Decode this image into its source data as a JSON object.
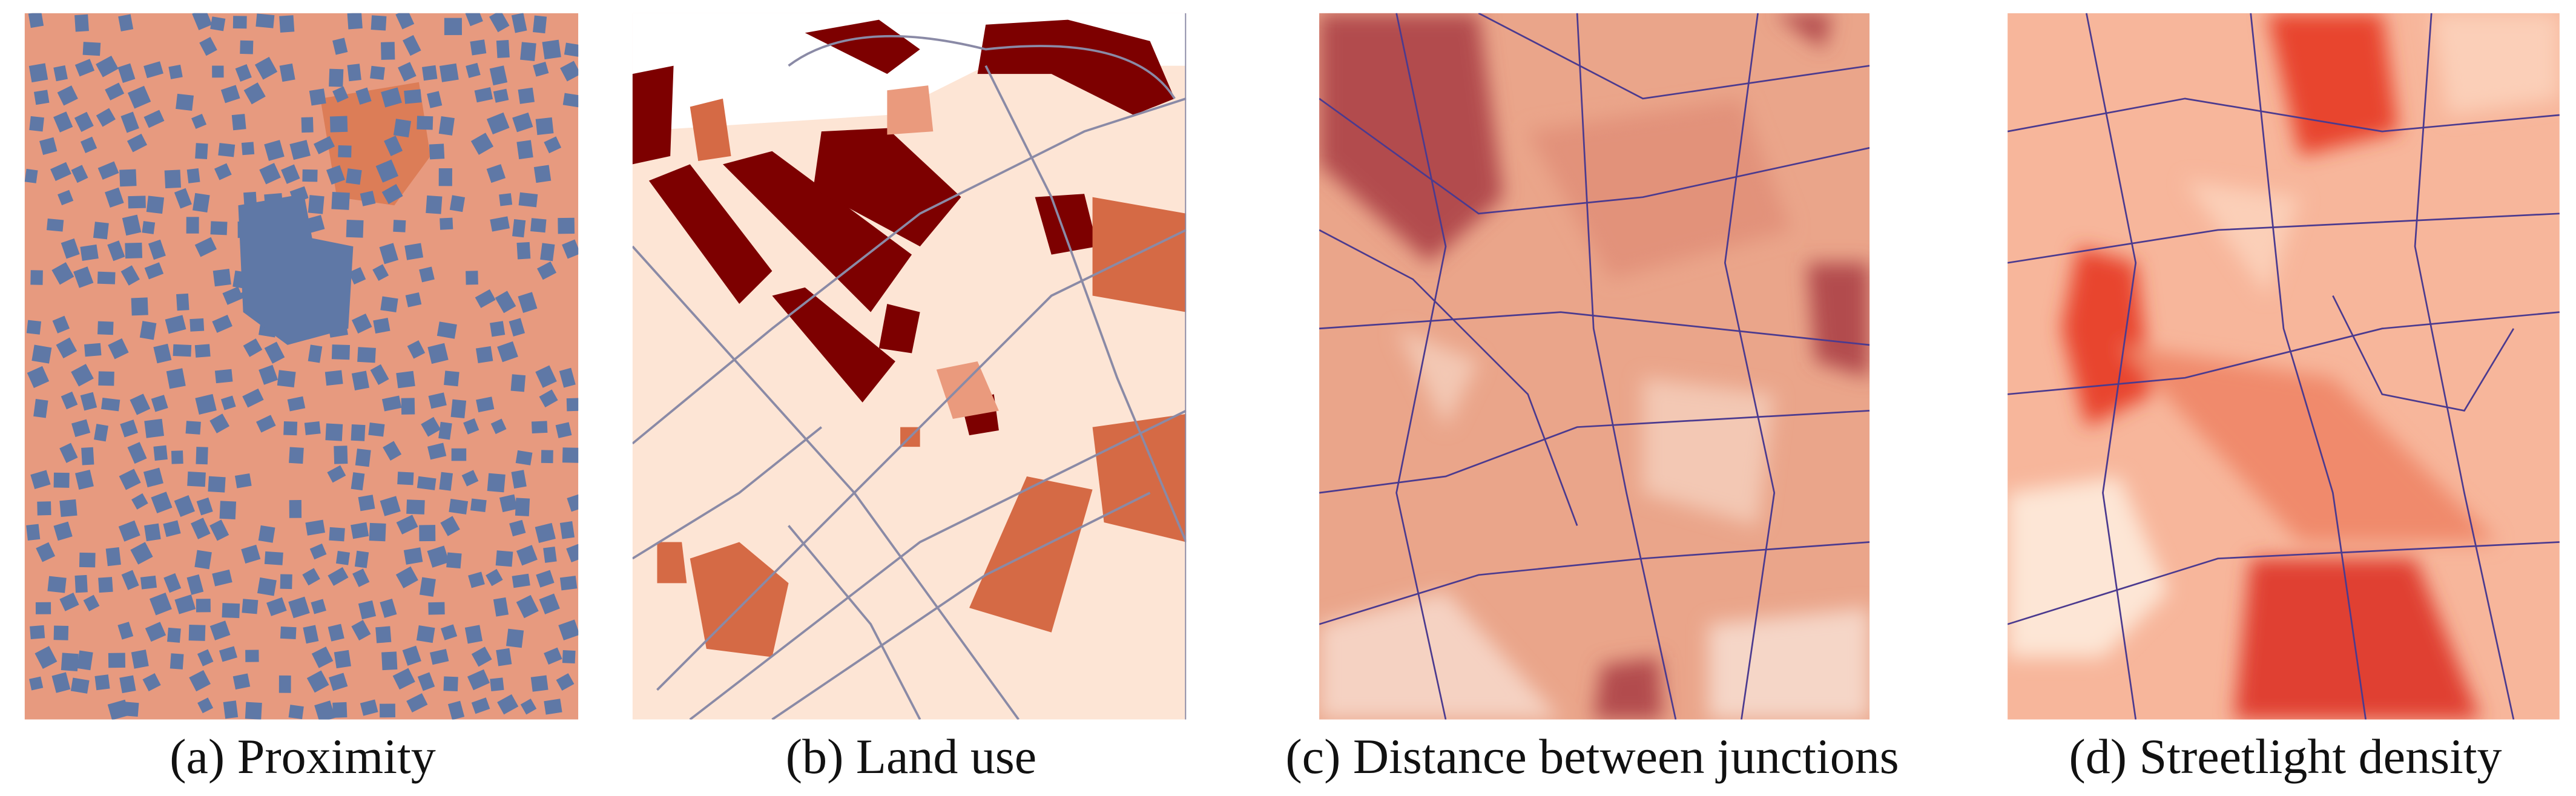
{
  "panels": [
    {
      "tag": "(a)",
      "caption": "Proximity"
    },
    {
      "tag": "(b)",
      "caption": "Land use"
    },
    {
      "tag": "(c)",
      "caption": "Distance between junctions"
    },
    {
      "tag": "(d)",
      "caption": "Streetlight density"
    }
  ]
}
